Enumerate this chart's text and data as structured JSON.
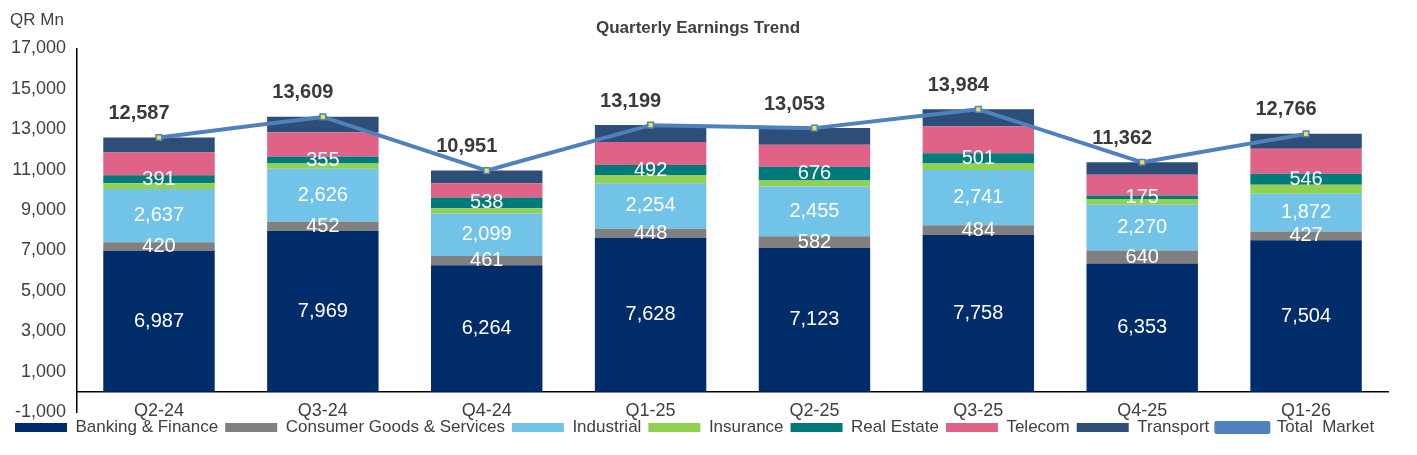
{
  "chart_data": {
    "type": "bar",
    "title": "Quarterly Earnings Trend",
    "ylabel": "QR Mn",
    "stacked": true,
    "grid": false,
    "legend": "bottom",
    "categories": [
      "Q2-24",
      "Q3-24",
      "Q4-24",
      "Q1-25",
      "Q2-25",
      "Q3-25",
      "Q4-25",
      "Q1-26"
    ],
    "ylim": [
      -1000,
      17000
    ],
    "yticks": [
      {
        "value": -1000,
        "label": "-1,000"
      },
      {
        "value": 1000,
        "label": "1,000"
      },
      {
        "value": 3000,
        "label": "3,000"
      },
      {
        "value": 5000,
        "label": "5,000"
      },
      {
        "value": 7000,
        "label": "7,000"
      },
      {
        "value": 9000,
        "label": "9,000"
      },
      {
        "value": 11000,
        "label": "11,000"
      },
      {
        "value": 13000,
        "label": "13,000"
      },
      {
        "value": 15000,
        "label": "15,000"
      },
      {
        "value": 17000,
        "label": "17,000"
      }
    ],
    "series": [
      {
        "name": "Banking & Finance",
        "color": "#002d6a",
        "values": [
          6987,
          7969,
          6264,
          7628,
          7123,
          7758,
          6353,
          7504
        ],
        "value_labels": [
          "6,987",
          "7,969",
          "6,264",
          "7,628",
          "7,123",
          "7,758",
          "6,353",
          "7,504"
        ]
      },
      {
        "name": "Consumer Goods & Services",
        "color": "#808080",
        "values": [
          420,
          452,
          461,
          448,
          582,
          484,
          640,
          427
        ],
        "value_labels": [
          "420",
          "452",
          "461",
          "448",
          "582",
          "484",
          "640",
          "427"
        ]
      },
      {
        "name": "Industrial",
        "color": "#72c3e8",
        "values": [
          2637,
          2626,
          2099,
          2254,
          2455,
          2741,
          2270,
          1872
        ],
        "value_labels": [
          "2,637",
          "2,626",
          "2,099",
          "2,254",
          "2,455",
          "2,741",
          "2,270",
          "1,872"
        ]
      },
      {
        "name": "Insurance",
        "color": "#92d050",
        "values": [
          280,
          250,
          260,
          400,
          300,
          320,
          280,
          450
        ]
      },
      {
        "name": "Real Estate",
        "color": "#007a7a",
        "values": [
          391,
          355,
          538,
          492,
          676,
          501,
          175,
          546
        ],
        "value_labels": [
          "391",
          "355",
          "538",
          "492",
          "676",
          "501",
          "175",
          "546"
        ]
      },
      {
        "name": "Telecom",
        "color": "#e06287",
        "values": [
          1130,
          1200,
          700,
          1150,
          1100,
          1340,
          1030,
          1230
        ]
      },
      {
        "name": "Transport",
        "color": "#2e4e7a",
        "values": [
          740,
          760,
          630,
          830,
          820,
          840,
          610,
          740
        ]
      },
      {
        "name": "Total  Market",
        "type": "line",
        "color": "#4f81bd",
        "marker": "square",
        "values": [
          12587,
          13609,
          10951,
          13199,
          13053,
          13984,
          11362,
          12766
        ],
        "value_labels": [
          "12,587",
          "13,609",
          "10,951",
          "13,199",
          "13,053",
          "13,984",
          "11,362",
          "12,766"
        ]
      }
    ]
  }
}
